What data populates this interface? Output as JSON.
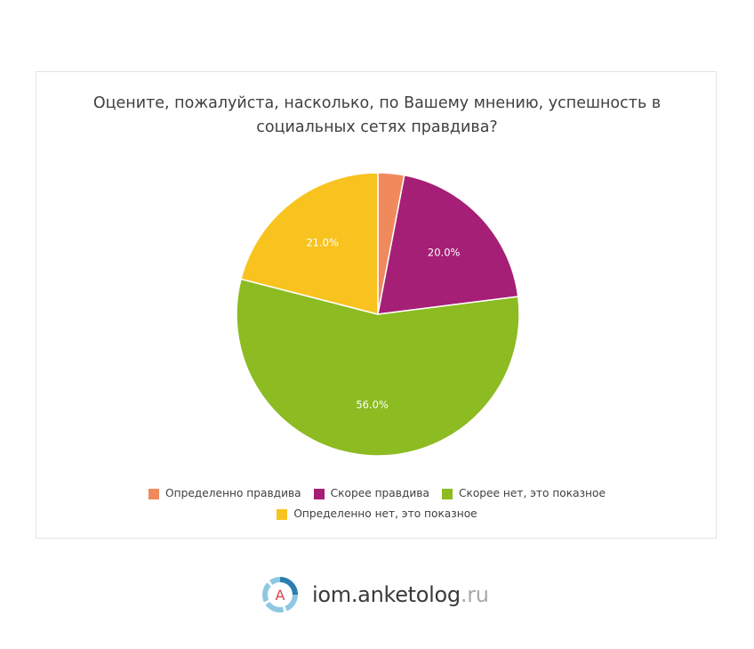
{
  "chart_data": {
    "type": "pie",
    "title": "Оцените, пожалуйста, насколько, по Вашему мнению, успешность в социальных сетях правдива?",
    "title_lines": [
      "Оцените, пожалуйста, насколько, по Вашему мнению, успешность в",
      "социальных сетях правдива?"
    ],
    "categories": [
      "Определенно правдива",
      "Скорее правдива",
      "Скорее нет, это показное",
      "Определенно нет, это показное"
    ],
    "values": [
      3.0,
      20.0,
      56.0,
      21.0
    ],
    "labels": [
      "",
      "20.0%",
      "56.0%",
      "21.0%"
    ],
    "colors": [
      "#f08a5d",
      "#a61f76",
      "#8cbb22",
      "#f9c31f"
    ],
    "start_angle": "top",
    "direction": "clockwise",
    "legend_position": "bottom"
  },
  "legend": {
    "items": [
      {
        "label": "Определенно правдива",
        "color": "#f08a5d"
      },
      {
        "label": "Скорее правдива",
        "color": "#a61f76"
      },
      {
        "label": "Скорее нет, это показное",
        "color": "#8cbb22"
      },
      {
        "label": "Определенно нет, это показное",
        "color": "#f9c31f"
      }
    ]
  },
  "footer": {
    "logo_letter": "A",
    "brand": "iom.anketolog",
    "tld": ".ru"
  }
}
